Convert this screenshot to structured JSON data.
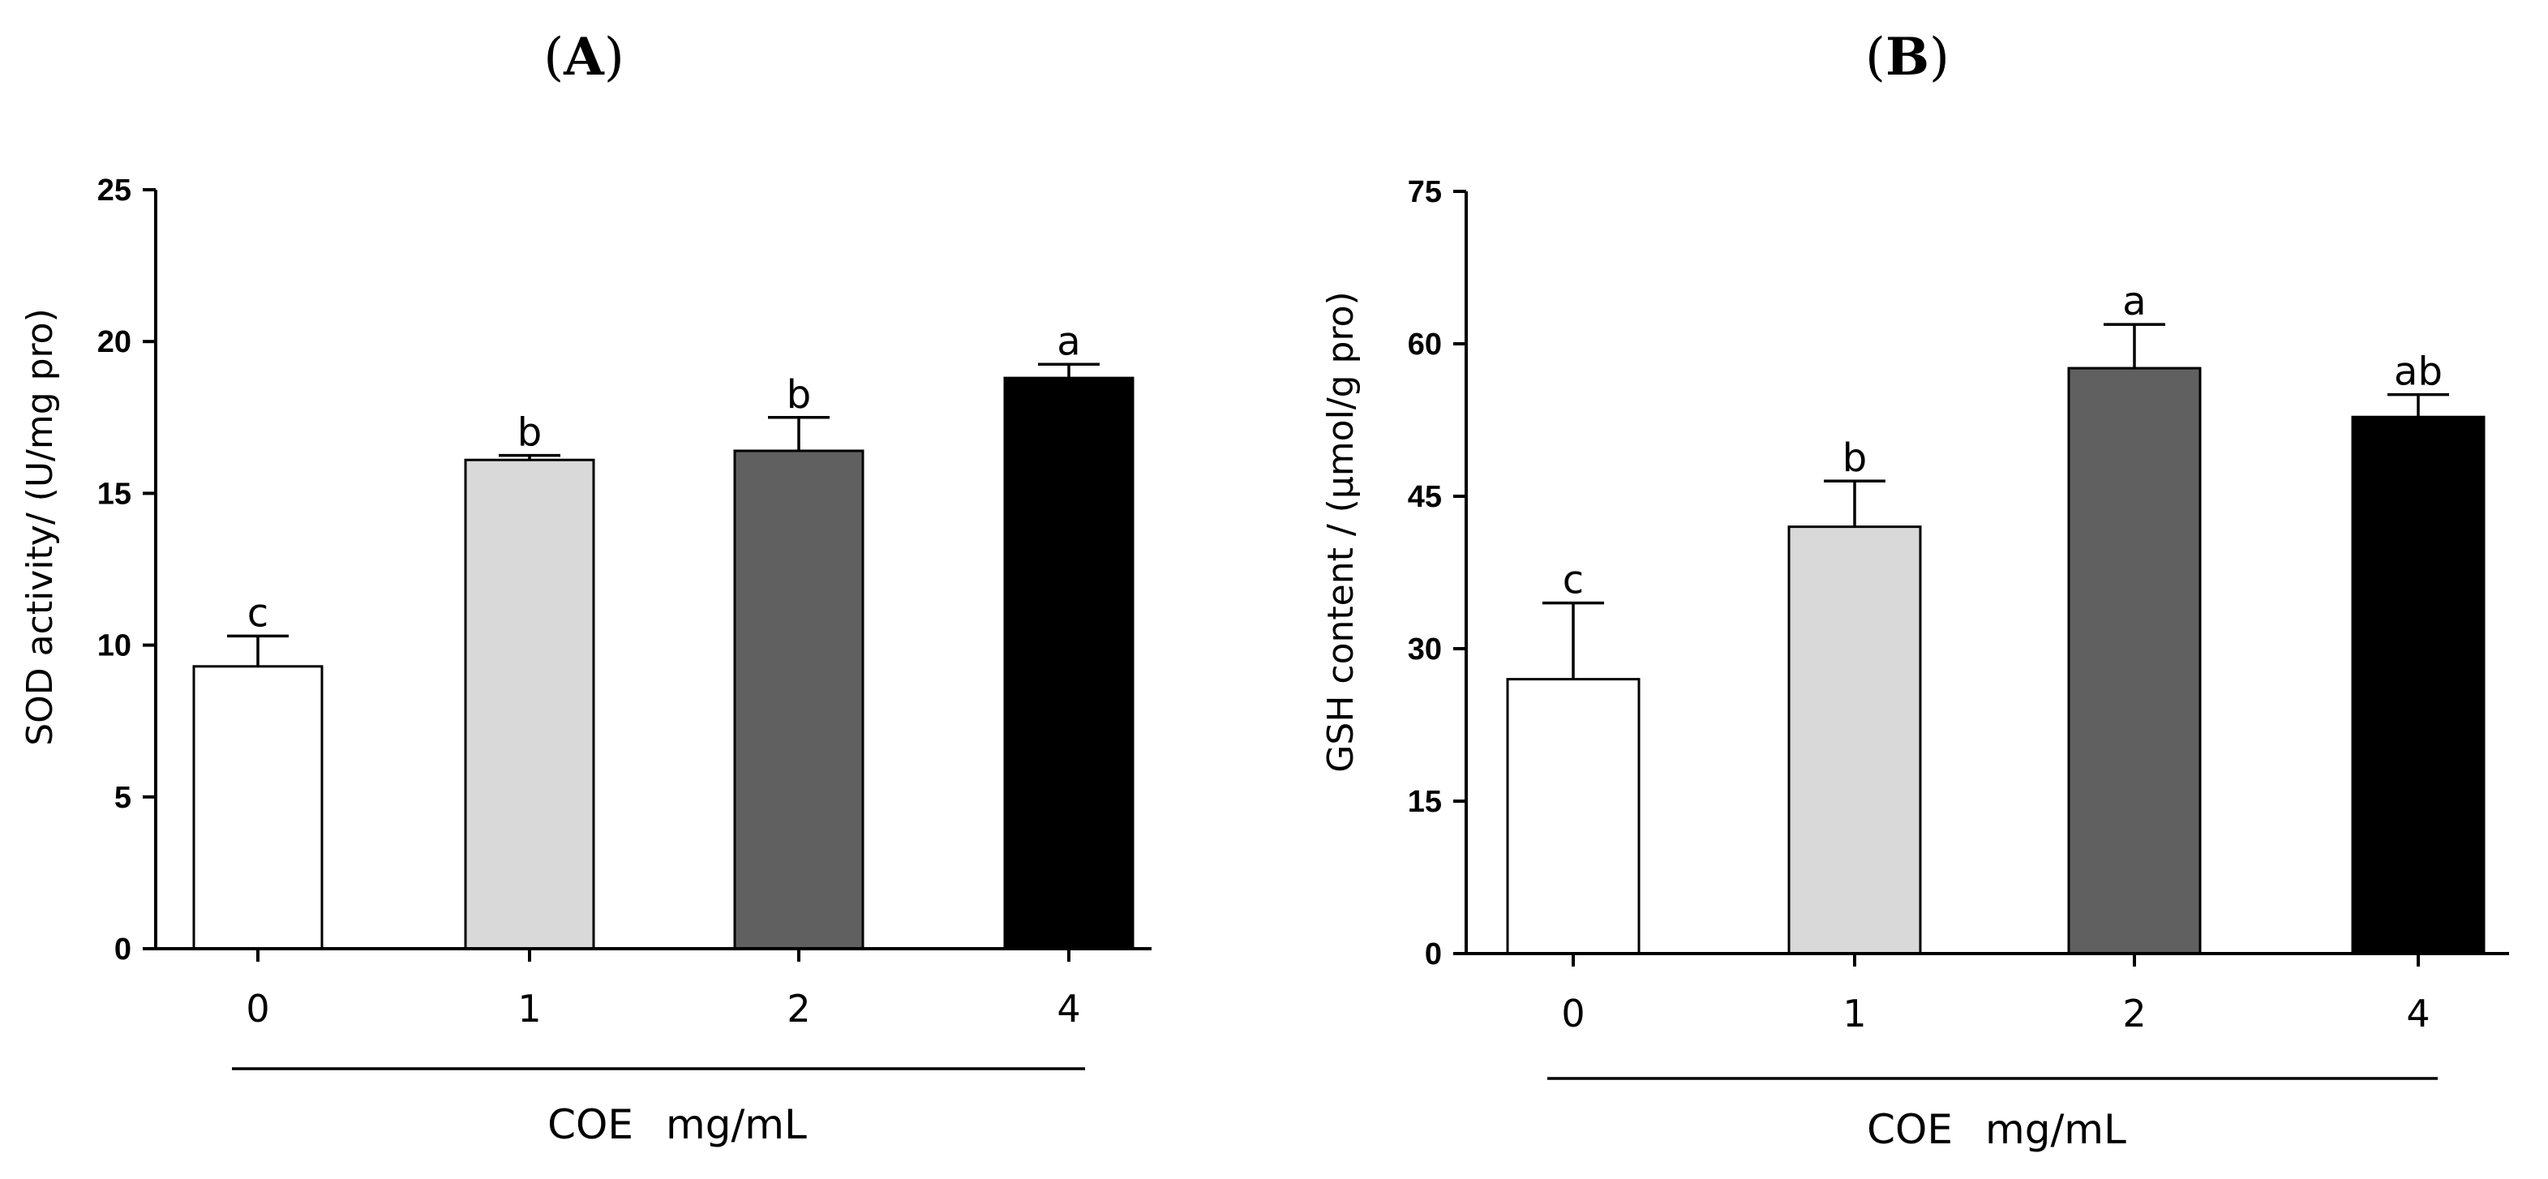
{
  "chart_data": [
    {
      "panel": "A",
      "type": "bar",
      "categories": [
        "0",
        "1",
        "2",
        "4"
      ],
      "values": [
        9.3,
        16.1,
        16.4,
        18.8
      ],
      "errors": [
        1.0,
        0.15,
        1.1,
        0.45
      ],
      "significance": [
        "c",
        "b",
        "b",
        "a"
      ],
      "bar_colors": [
        "#ffffff",
        "#d9d9d9",
        "#606060",
        "#000000"
      ],
      "ylabel": "SOD activity/ (U/mg pro)",
      "ylim": [
        0,
        25
      ],
      "yticks": [
        "0",
        "5",
        "10",
        "15",
        "20",
        "25"
      ],
      "group_prefix": "COE",
      "group_unit": "mg/mL"
    },
    {
      "panel": "B",
      "type": "bar",
      "categories": [
        "0",
        "1",
        "2",
        "4"
      ],
      "values": [
        27,
        42,
        57.6,
        52.8
      ],
      "errors": [
        7.5,
        4.5,
        4.3,
        2.2
      ],
      "significance": [
        "c",
        "b",
        "a",
        "ab"
      ],
      "bar_colors": [
        "#ffffff",
        "#d9d9d9",
        "#606060",
        "#000000"
      ],
      "ylabel": "GSH content / (μmol/g pro)",
      "ylim": [
        0,
        75
      ],
      "yticks": [
        "0",
        "15",
        "30",
        "45",
        "60",
        "75"
      ],
      "group_prefix": "COE",
      "group_unit": "mg/mL"
    }
  ]
}
